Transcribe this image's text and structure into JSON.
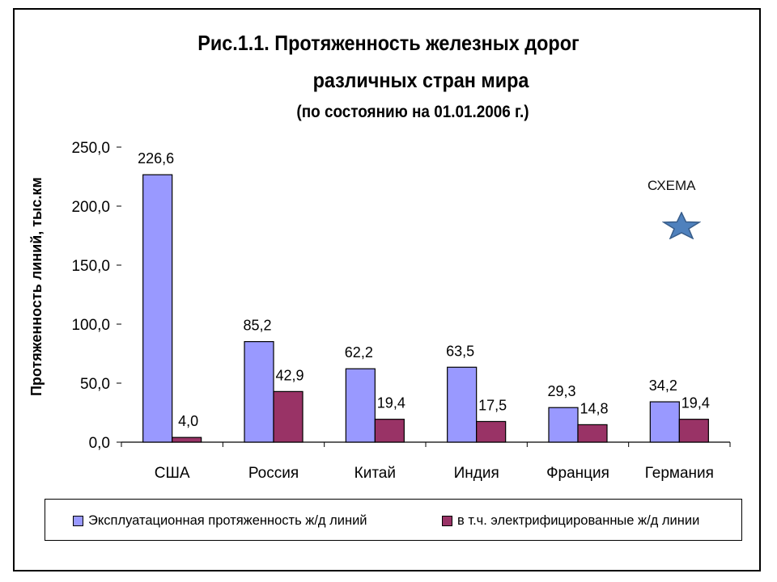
{
  "title_line1": "Рис.1.1. Протяженность железных дорог",
  "title_line2": "различных стран мира",
  "title_line3": "(по состоянию на 01.01.2006 г.)",
  "annotation": "СХЕМА",
  "icons": {
    "star": "star-icon"
  },
  "chart_data": {
    "type": "bar",
    "ylabel": "Протяженность линий, тыс.км",
    "xlabel": "",
    "ylim": [
      0,
      250
    ],
    "y_ticks": [
      "0,0",
      "50,0",
      "100,0",
      "150,0",
      "200,0",
      "250,0"
    ],
    "categories": [
      "США",
      "Россия",
      "Китай",
      "Индия",
      "Франция",
      "Германия"
    ],
    "series": [
      {
        "name": "Эксплуатационная протяженность ж/д линий",
        "values": [
          226.6,
          85.2,
          62.2,
          63.5,
          29.3,
          34.2
        ],
        "labels": [
          "226,6",
          "85,2",
          "62,2",
          "63,5",
          "29,3",
          "34,2"
        ],
        "color": "#9999ff"
      },
      {
        "name": "в т.ч. электрифицированные ж/д линии",
        "values": [
          4.0,
          42.9,
          19.4,
          17.5,
          14.8,
          19.4
        ],
        "labels": [
          "4,0",
          "42,9",
          "19,4",
          "17,5",
          "14,8",
          "19,4"
        ],
        "color": "#993366"
      }
    ],
    "legend_position": "bottom",
    "grid": false
  }
}
